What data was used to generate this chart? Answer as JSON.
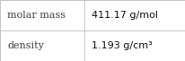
{
  "rows": [
    {
      "label": "molar mass",
      "value": "411.17 g/mol"
    },
    {
      "label": "density",
      "value": "1.193 g/cm³"
    }
  ],
  "bg_color": "#ffffff",
  "border_color": "#bbbbbb",
  "label_color": "#404040",
  "value_color": "#111111",
  "label_fontsize": 8.0,
  "value_fontsize": 8.0,
  "col_split": 0.455,
  "fig_width": 2.07,
  "fig_height": 0.68,
  "dpi": 100
}
